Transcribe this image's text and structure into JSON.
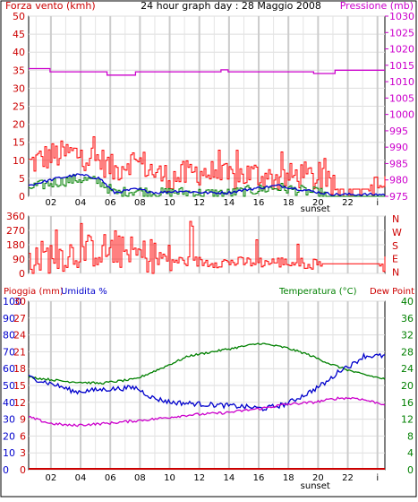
{
  "header": {
    "left_label": "Forza vento (kmh)",
    "title": "24 hour graph day : 28 Maggio 2008",
    "right_label": "Pressione (mb)"
  },
  "chart_data": [
    {
      "type": "line",
      "id": "wind-pressure",
      "x_ticks": [
        "02",
        "04",
        "06",
        "08",
        "10",
        "12",
        "14",
        "16",
        "18",
        "20",
        "22",
        "i"
      ],
      "sunset_label": "sunset",
      "y_left_ticks": [
        0,
        5,
        10,
        15,
        20,
        25,
        30,
        35,
        40,
        45,
        50
      ],
      "y_left_range": [
        0,
        50
      ],
      "y_right_ticks": [
        975,
        980,
        985,
        990,
        995,
        1000,
        1005,
        1010,
        1015,
        1020,
        1025,
        1030
      ],
      "y_right_range": [
        975,
        1030
      ],
      "series": [
        {
          "key": "gust",
          "color": "#ff0000"
        },
        {
          "key": "avg_blue",
          "color": "#0000cc"
        },
        {
          "key": "avg_green",
          "color": "#008000"
        },
        {
          "key": "pressure",
          "color": "#cc00cc"
        }
      ],
      "pressure_steps": [
        [
          0,
          1014
        ],
        [
          0.06,
          1014
        ],
        [
          0.06,
          1013
        ],
        [
          0.22,
          1013
        ],
        [
          0.22,
          1012
        ],
        [
          0.3,
          1012
        ],
        [
          0.3,
          1013
        ],
        [
          0.54,
          1013
        ],
        [
          0.54,
          1013.6
        ],
        [
          0.56,
          1013.6
        ],
        [
          0.56,
          1013
        ],
        [
          0.8,
          1013
        ],
        [
          0.8,
          1012.5
        ],
        [
          0.86,
          1012.5
        ],
        [
          0.86,
          1013.5
        ],
        [
          1,
          1013.5
        ]
      ],
      "gust_profile": [
        [
          0,
          9
        ],
        [
          0.05,
          11
        ],
        [
          0.12,
          12
        ],
        [
          0.16,
          11
        ],
        [
          0.2,
          10
        ],
        [
          0.24,
          7
        ],
        [
          0.28,
          10
        ],
        [
          0.32,
          9
        ],
        [
          0.36,
          6
        ],
        [
          0.4,
          5
        ],
        [
          0.44,
          6
        ],
        [
          0.48,
          7
        ],
        [
          0.52,
          6
        ],
        [
          0.56,
          5
        ],
        [
          0.6,
          6
        ],
        [
          0.64,
          6
        ],
        [
          0.68,
          5
        ],
        [
          0.72,
          5
        ],
        [
          0.76,
          6
        ],
        [
          0.8,
          5
        ],
        [
          0.84,
          3
        ],
        [
          0.88,
          2
        ],
        [
          0.92,
          1
        ],
        [
          0.96,
          2
        ],
        [
          1,
          3
        ]
      ],
      "avg_profile": [
        [
          0,
          3
        ],
        [
          0.08,
          5
        ],
        [
          0.14,
          6
        ],
        [
          0.2,
          5
        ],
        [
          0.24,
          1
        ],
        [
          0.3,
          2
        ],
        [
          0.36,
          1
        ],
        [
          0.42,
          1.5
        ],
        [
          0.5,
          1
        ],
        [
          0.56,
          1
        ],
        [
          0.62,
          2
        ],
        [
          0.7,
          3
        ],
        [
          0.76,
          2
        ],
        [
          0.82,
          1
        ],
        [
          0.86,
          0.5
        ],
        [
          1,
          0.5
        ]
      ]
    },
    {
      "type": "scatter",
      "id": "wind-direction",
      "y_ticks": [
        0,
        90,
        180,
        270,
        360
      ],
      "y_range": [
        0,
        360
      ],
      "direction_labels": [
        "N",
        "W",
        "S",
        "E",
        "N"
      ],
      "series": [
        {
          "key": "direction",
          "color": "#ff0000"
        }
      ],
      "direction_profile": [
        [
          0,
          90
        ],
        [
          0.2,
          150
        ],
        [
          0.3,
          120
        ],
        [
          0.4,
          80
        ],
        [
          0.5,
          70
        ],
        [
          0.6,
          70
        ],
        [
          0.7,
          70
        ],
        [
          0.8,
          60
        ],
        [
          0.86,
          60
        ],
        [
          0.96,
          60
        ],
        [
          1,
          90
        ]
      ]
    },
    {
      "type": "line",
      "id": "rain-humidity-temp",
      "left_label_rain": "Pioggia (mm)",
      "left_label_humidity": "Umidita %",
      "right_label_temp": "Temperatura (°C)",
      "right_label_dew": "Dew Point",
      "x_ticks": [
        "02",
        "04",
        "06",
        "08",
        "10",
        "12",
        "14",
        "16",
        "18",
        "20",
        "22",
        "i"
      ],
      "sunset_label": "sunset",
      "y_rain_ticks": [
        0,
        10,
        20,
        30,
        40,
        50,
        60,
        70,
        80,
        90,
        100
      ],
      "y_humidity_ticks": [
        0,
        3,
        6,
        9,
        12,
        15,
        18,
        21,
        24,
        27,
        30
      ],
      "y_temp_ticks": [
        0,
        4,
        8,
        12,
        16,
        20,
        24,
        28,
        32,
        36,
        40
      ],
      "temp_range": [
        0,
        40
      ],
      "series": [
        {
          "key": "humidity",
          "color": "#0000cc"
        },
        {
          "key": "temperature",
          "color": "#008000"
        },
        {
          "key": "dew_point",
          "color": "#cc00cc"
        },
        {
          "key": "rain",
          "color": "#cc0000"
        }
      ],
      "humidity_pts": [
        [
          0,
          22
        ],
        [
          0.08,
          20
        ],
        [
          0.13,
          18.5
        ],
        [
          0.2,
          19
        ],
        [
          0.3,
          19.5
        ],
        [
          0.35,
          17
        ],
        [
          0.4,
          16
        ],
        [
          0.5,
          15.5
        ],
        [
          0.6,
          15
        ],
        [
          0.66,
          14.5
        ],
        [
          0.72,
          15.5
        ],
        [
          0.78,
          18
        ],
        [
          0.84,
          21
        ],
        [
          0.88,
          24
        ],
        [
          0.91,
          25
        ],
        [
          0.94,
          27
        ],
        [
          1,
          27
        ]
      ],
      "temperature_pts": [
        [
          0,
          22
        ],
        [
          0.1,
          21
        ],
        [
          0.2,
          20.5
        ],
        [
          0.3,
          21.5
        ],
        [
          0.37,
          24
        ],
        [
          0.45,
          27
        ],
        [
          0.55,
          28.5
        ],
        [
          0.65,
          30
        ],
        [
          0.72,
          29
        ],
        [
          0.78,
          27.5
        ],
        [
          0.85,
          25
        ],
        [
          0.92,
          23
        ],
        [
          1,
          21.5
        ]
      ],
      "dewpoint_pts": [
        [
          0,
          12.5
        ],
        [
          0.06,
          11
        ],
        [
          0.12,
          10.5
        ],
        [
          0.22,
          11
        ],
        [
          0.35,
          12
        ],
        [
          0.45,
          13
        ],
        [
          0.55,
          13.5
        ],
        [
          0.65,
          14.5
        ],
        [
          0.72,
          15.5
        ],
        [
          0.8,
          16
        ],
        [
          0.87,
          17
        ],
        [
          0.92,
          17
        ],
        [
          1,
          15.5
        ]
      ],
      "rain_value": 0
    }
  ]
}
